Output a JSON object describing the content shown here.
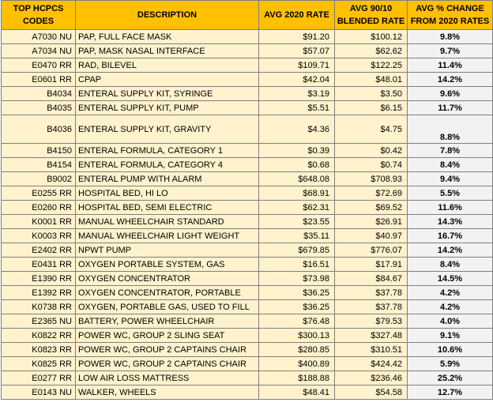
{
  "headers": {
    "codes": "TOP HCPCS CODES",
    "description": "DESCRIPTION",
    "avg2020": "AVG 2020 RATE",
    "blended": "AVG 90/10 BLENDED RATE",
    "change": "AVG % CHANGE FROM 2020 RATES"
  },
  "rows": [
    {
      "code": "A7030 NU",
      "desc": "PAP, FULL FACE MASK",
      "r2020": "$91.20",
      "blend": "$100.12",
      "pct": "9.8%"
    },
    {
      "code": "A7034 NU",
      "desc": "PAP, MASK NASAL INTERFACE",
      "r2020": "$57.07",
      "blend": "$62.62",
      "pct": "9.7%"
    },
    {
      "code": "E0470 RR",
      "desc": "RAD, BILEVEL",
      "r2020": "$109.71",
      "blend": "$122.25",
      "pct": "11.4%"
    },
    {
      "code": "E0601 RR",
      "desc": "CPAP",
      "r2020": "$42.04",
      "blend": "$48.01",
      "pct": "14.2%"
    },
    {
      "code": "B4034",
      "desc": "ENTERAL SUPPLY KIT, SYRINGE",
      "r2020": "$3.19",
      "blend": "$3.50",
      "pct": "9.6%"
    },
    {
      "code": "B4035",
      "desc": "ENTERAL SUPPLY KIT, PUMP",
      "r2020": "$5.51",
      "blend": "$6.15",
      "pct": "11.7%"
    },
    {
      "code": "B4036",
      "desc": "ENTERAL SUPPLY KIT, GRAVITY",
      "r2020": "$4.36",
      "blend": "$4.75",
      "pct": "8.8%"
    },
    {
      "code": "B4150",
      "desc": "ENTERAL  FORMULA, CATEGORY 1",
      "r2020": "$0.39",
      "blend": "$0.42",
      "pct": "7.8%"
    },
    {
      "code": "B4154",
      "desc": "ENTERAL  FORMULA, CATEGORY 4",
      "r2020": "$0.68",
      "blend": "$0.74",
      "pct": "8.4%"
    },
    {
      "code": "B9002",
      "desc": "ENTERAL PUMP WITH ALARM",
      "r2020": "$648.08",
      "blend": "$708.93",
      "pct": "9.4%"
    },
    {
      "code": "E0255 RR",
      "desc": "HOSPITAL BED, HI LO",
      "r2020": "$68.91",
      "blend": "$72.69",
      "pct": "5.5%"
    },
    {
      "code": "E0260 RR",
      "desc": "HOSPITAL BED, SEMI ELECTRIC",
      "r2020": "$62.31",
      "blend": "$69.52",
      "pct": "11.6%"
    },
    {
      "code": "K0001 RR",
      "desc": "MANUAL WHEELCHAIR STANDARD",
      "r2020": "$23.55",
      "blend": "$26.91",
      "pct": "14.3%"
    },
    {
      "code": "K0003 RR",
      "desc": "MANUAL  WHEELCHAIR LIGHT WEIGHT",
      "r2020": "$35.11",
      "blend": "$40.97",
      "pct": "16.7%"
    },
    {
      "code": "E2402 RR",
      "desc": "NPWT PUMP",
      "r2020": "$679.85",
      "blend": "$776.07",
      "pct": "14.2%"
    },
    {
      "code": "E0431 RR",
      "desc": "OXYGEN PORTABLE SYSTEM, GAS",
      "r2020": "$16.51",
      "blend": "$17.91",
      "pct": "8.4%"
    },
    {
      "code": "E1390 RR",
      "desc": "OXYGEN  CONCENTRATOR",
      "r2020": "$73.98",
      "blend": "$84.67",
      "pct": "14.5%"
    },
    {
      "code": "E1392 RR",
      "desc": "OXYGEN CONCENTRATOR, PORTABLE",
      "r2020": "$36.25",
      "blend": "$37.78",
      "pct": "4.2%"
    },
    {
      "code": "K0738 RR",
      "desc": "OXYGEN, PORTABLE GAS, USED TO FILL",
      "r2020": "$36.25",
      "blend": "$37.78",
      "pct": "4.2%"
    },
    {
      "code": "E2365 NU",
      "desc": "BATTERY, POWER WHEELCHAIR",
      "r2020": "$76.48",
      "blend": "$79.53",
      "pct": "4.0%"
    },
    {
      "code": "K0822 RR",
      "desc": "POWER  WC, GROUP 2 SLING SEAT",
      "r2020": "$300.13",
      "blend": "$327.48",
      "pct": "9.1%"
    },
    {
      "code": "K0823 RR",
      "desc": "POWER  WC, GROUP 2 CAPTAINS CHAIR",
      "r2020": "$280.85",
      "blend": "$310.51",
      "pct": "10.6%"
    },
    {
      "code": "K0825 RR",
      "desc": "POWER  WC, GROUP 2 CAPTAINS CHAIR",
      "r2020": "$400.89",
      "blend": "$424.42",
      "pct": "5.9%"
    },
    {
      "code": "E0277 RR",
      "desc": "LOW AIR LOSS MATTRESS",
      "r2020": "$188.88",
      "blend": "$236.46",
      "pct": "25.2%"
    },
    {
      "code": "E0143 NU",
      "desc": "WALKER, WHEELS",
      "r2020": "$48.41",
      "blend": "$54.58",
      "pct": "12.7%"
    }
  ],
  "colors": {
    "header_bg": "#ffc000",
    "cell_bg": "#fff2cc",
    "change_bg": "#f2f2f2",
    "border": "#7f7f7f"
  }
}
